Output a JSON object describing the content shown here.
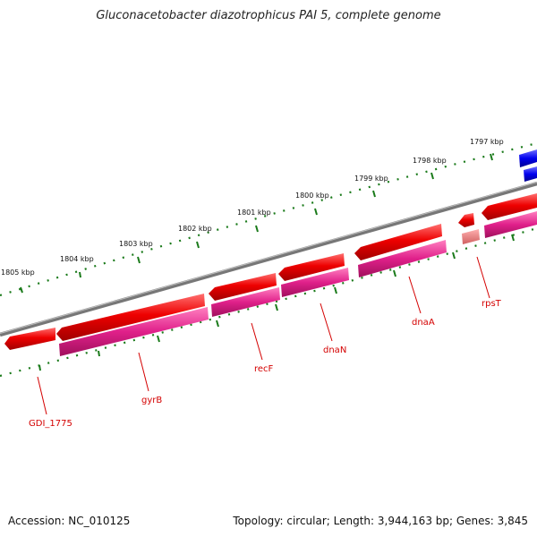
{
  "title": "Gluconacetobacter diazotrophicus PAI 5, complete genome",
  "accession": "Accession: NC_010125",
  "topology": "Topology: circular; Length: 3,944,163 bp; Genes: 3,845",
  "scale_labels": [
    "1797 kbp",
    "1798 kbp",
    "1799 kbp",
    "1800 kbp",
    "1801 kbp",
    "1802 kbp",
    "1803 kbp",
    "1804 kbp",
    "1805 kbp"
  ],
  "gene_labels": [
    "rpsT",
    "dnaA",
    "dnaN",
    "recF",
    "gyrB",
    "GDI_1775"
  ],
  "colors": {
    "backbone": "#777777",
    "tick": "#1a7a1a",
    "gene_red": "#ee0000",
    "cds_magenta": "#e0208a",
    "other_blue": "#0000ee",
    "label_red": "#d40000"
  }
}
